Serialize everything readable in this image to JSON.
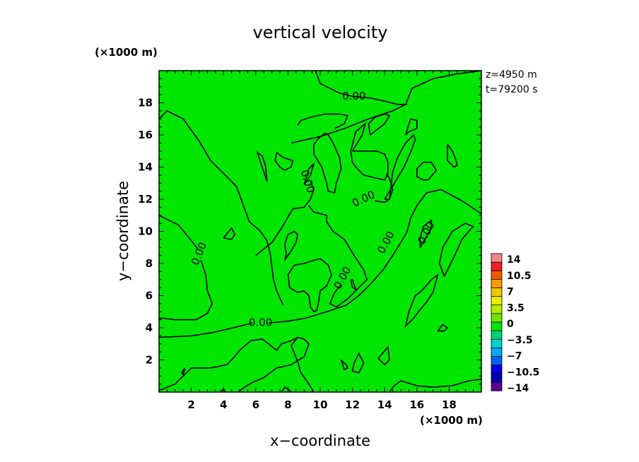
{
  "chart_data": {
    "type": "heatmap",
    "title": "vertical velocity",
    "xlabel": "x−coordinate",
    "ylabel": "y−coordinate",
    "x_unit": "(×1000 m)",
    "y_unit": "(×1000 m)",
    "xlim": [
      0,
      20
    ],
    "ylim": [
      0,
      20
    ],
    "xticks": [
      "2",
      "4",
      "6",
      "8",
      "10",
      "12",
      "14",
      "16",
      "18"
    ],
    "yticks": [
      "2",
      "4",
      "6",
      "8",
      "10",
      "12",
      "14",
      "16",
      "18"
    ],
    "info": [
      "z=4950  m",
      "t=79200  s"
    ],
    "field_value_dominant": 0,
    "contour_level": 0,
    "contour_labels": [
      {
        "text": "0.00",
        "x": 12.1,
        "y": 18.4,
        "angle": 0
      },
      {
        "text": "0.00",
        "x": 6.3,
        "y": 4.3,
        "angle": 0
      },
      {
        "text": "0.00",
        "x": 12.7,
        "y": 12.0,
        "angle": -25
      },
      {
        "text": "0.00",
        "x": 2.5,
        "y": 8.6,
        "angle": -68
      },
      {
        "text": "0.00",
        "x": 9.2,
        "y": 13.1,
        "angle": 72
      },
      {
        "text": "0.00",
        "x": 14.1,
        "y": 9.3,
        "angle": -62
      },
      {
        "text": "0.00",
        "x": 11.4,
        "y": 7.1,
        "angle": -62
      },
      {
        "text": "0.00",
        "x": 16.6,
        "y": 9.9,
        "angle": -62
      }
    ],
    "colorbar": {
      "labels": [
        "14",
        "10.5",
        "7",
        "3.5",
        "0",
        "−3.5",
        "−7",
        "−10.5",
        "−14"
      ],
      "colors": [
        "#ef8888",
        "#ef2020",
        "#ef5a00",
        "#ff9c00",
        "#f0c800",
        "#e6ef00",
        "#b4ef00",
        "#6ee600",
        "#00e600",
        "#00d27a",
        "#00d2d2",
        "#00a8f0",
        "#0064f0",
        "#0000e6",
        "#0000b4",
        "#5a0096"
      ]
    },
    "contours": [
      [
        [
          8.2,
          15.5
        ],
        [
          10.0,
          15.9
        ],
        [
          11.5,
          16.4
        ],
        [
          13.0,
          17.0
        ],
        [
          14.5,
          17.5
        ],
        [
          15.3,
          17.9
        ],
        [
          15.7,
          18.9
        ],
        [
          17.0,
          19.5
        ],
        [
          18.5,
          19.8
        ],
        [
          20,
          20
        ]
      ],
      [
        [
          9.7,
          20
        ],
        [
          10.0,
          19.2
        ],
        [
          11.2,
          18.6
        ],
        [
          12.0,
          18.4
        ],
        [
          13.1,
          18.3
        ],
        [
          14.0,
          18.1
        ],
        [
          14.8,
          17.9
        ],
        [
          15.4,
          17.9
        ]
      ],
      [
        [
          20,
          11.1
        ],
        [
          18.8,
          11.9
        ],
        [
          17.5,
          12.6
        ],
        [
          16.6,
          12.4
        ],
        [
          16.0,
          11.6
        ],
        [
          15.6,
          10.8
        ],
        [
          15.4,
          10.0
        ],
        [
          15.0,
          9.3
        ],
        [
          14.5,
          8.5
        ],
        [
          13.9,
          7.6
        ],
        [
          13.1,
          6.7
        ],
        [
          12.4,
          6.0
        ],
        [
          11.6,
          5.4
        ],
        [
          10.4,
          5.0
        ],
        [
          9.1,
          4.6
        ],
        [
          7.9,
          4.4
        ],
        [
          6.8,
          4.3
        ]
      ],
      [
        [
          5.8,
          4.3
        ],
        [
          4.6,
          4.0
        ],
        [
          3.3,
          3.7
        ],
        [
          2.0,
          3.5
        ],
        [
          0,
          3.4
        ]
      ],
      [
        [
          0,
          11.0
        ],
        [
          1.2,
          10.4
        ],
        [
          2.1,
          9.3
        ],
        [
          2.4,
          8.9
        ]
      ],
      [
        [
          2.6,
          8.2
        ],
        [
          2.9,
          7.3
        ],
        [
          3.0,
          6.3
        ],
        [
          3.3,
          5.5
        ],
        [
          3.0,
          4.9
        ],
        [
          2.3,
          4.5
        ],
        [
          1.0,
          4.5
        ],
        [
          0.2,
          4.6
        ],
        [
          0,
          4.6
        ]
      ],
      [
        [
          0,
          17.0
        ],
        [
          0.5,
          17.5
        ],
        [
          1.5,
          17.0
        ],
        [
          2.5,
          15.6
        ],
        [
          3.2,
          14.4
        ],
        [
          4.2,
          13.4
        ],
        [
          4.8,
          12.8
        ],
        [
          5.2,
          11.7
        ],
        [
          5.6,
          10.6
        ],
        [
          6.3,
          10.0
        ],
        [
          6.7,
          9.4
        ],
        [
          6.9,
          8.6
        ],
        [
          7.0,
          7.8
        ],
        [
          7.1,
          7.0
        ],
        [
          7.3,
          6.3
        ],
        [
          7.7,
          5.4
        ]
      ],
      [
        [
          9.6,
          0
        ],
        [
          9.3,
          0.5
        ],
        [
          8.8,
          1.2
        ],
        [
          8.6,
          1.9
        ],
        [
          8.4,
          2.4
        ],
        [
          8.2,
          2.9
        ],
        [
          8.6,
          3.4
        ]
      ],
      [
        [
          6.0,
          8.5
        ],
        [
          7.0,
          9.3
        ],
        [
          7.6,
          10.2
        ],
        [
          8.3,
          11.4
        ],
        [
          9.0,
          11.5
        ],
        [
          9.4,
          12.0
        ],
        [
          9.6,
          12.6
        ],
        [
          9.4,
          13.1
        ]
      ],
      [
        [
          10.9,
          16.4
        ],
        [
          11.5,
          16.7
        ],
        [
          11.7,
          17.2
        ],
        [
          11.2,
          17.3
        ],
        [
          10.3,
          17.3
        ],
        [
          9.4,
          17.1
        ],
        [
          8.8,
          16.9
        ],
        [
          8.6,
          16.6
        ]
      ],
      [
        [
          9.3,
          11.6
        ],
        [
          9.6,
          11.2
        ],
        [
          10.4,
          11.0
        ],
        [
          10.4,
          10.6
        ],
        [
          10.8,
          10.0
        ],
        [
          11.5,
          9.5
        ],
        [
          12.1,
          8.5
        ],
        [
          12.7,
          7.6
        ],
        [
          12.9,
          7.0
        ],
        [
          12.3,
          6.4
        ],
        [
          11.7,
          5.8
        ],
        [
          11.0,
          5.3
        ],
        [
          10.6,
          5.5
        ],
        [
          10.9,
          6.2
        ],
        [
          11.3,
          6.7
        ]
      ],
      [
        [
          11.0,
          13.0
        ],
        [
          11.3,
          13.9
        ],
        [
          11.2,
          14.6
        ],
        [
          10.8,
          15.5
        ],
        [
          10.5,
          16.0
        ],
        [
          10.3,
          16.1
        ],
        [
          9.9,
          15.8
        ],
        [
          9.6,
          15.4
        ],
        [
          9.6,
          14.8
        ],
        [
          10.1,
          14.0
        ],
        [
          10.4,
          13.0
        ],
        [
          10.5,
          12.5
        ],
        [
          10.9,
          12.4
        ],
        [
          11.0,
          13.0
        ]
      ],
      [
        [
          12.0,
          15.0
        ],
        [
          12.6,
          16.0
        ],
        [
          12.8,
          16.7
        ],
        [
          12.2,
          16.2
        ],
        [
          11.9,
          15.0
        ],
        [
          12.0,
          14.3
        ],
        [
          12.3,
          13.9
        ],
        [
          12.7,
          13.5
        ],
        [
          13.5,
          13.3
        ],
        [
          14.0,
          13.2
        ],
        [
          14.2,
          13.6
        ],
        [
          14.2,
          14.3
        ],
        [
          14.0,
          14.8
        ],
        [
          13.5,
          15.0
        ],
        [
          12.8,
          15.0
        ],
        [
          12.0,
          15.0
        ]
      ],
      [
        [
          13.4,
          11.9
        ],
        [
          14.0,
          11.8
        ],
        [
          14.3,
          12.0
        ],
        [
          14.5,
          12.6
        ],
        [
          14.3,
          13.3
        ],
        [
          14.1,
          13.6
        ]
      ],
      [
        [
          14.0,
          12.0
        ],
        [
          15.2,
          14.0
        ],
        [
          15.6,
          14.9
        ],
        [
          15.9,
          15.7
        ],
        [
          15.8,
          16.0
        ],
        [
          15.3,
          15.5
        ],
        [
          14.8,
          14.6
        ],
        [
          14.5,
          13.7
        ],
        [
          14.4,
          12.8
        ],
        [
          14.3,
          12.0
        ],
        [
          14.0,
          12.0
        ]
      ],
      [
        [
          13.1,
          16.0
        ],
        [
          14.0,
          16.7
        ],
        [
          14.3,
          17.2
        ],
        [
          14.0,
          17.3
        ],
        [
          13.4,
          17.1
        ],
        [
          13.0,
          16.7
        ],
        [
          13.1,
          16.0
        ]
      ],
      [
        [
          15.6,
          17.0
        ],
        [
          16.0,
          16.9
        ],
        [
          16.0,
          16.4
        ],
        [
          15.5,
          16.2
        ],
        [
          15.3,
          16.0
        ],
        [
          15.6,
          17.0
        ]
      ],
      [
        [
          6.7,
          13.1
        ],
        [
          6.3,
          14.3
        ],
        [
          6.1,
          14.9
        ],
        [
          6.4,
          14.7
        ],
        [
          6.6,
          14.1
        ],
        [
          6.7,
          13.1
        ]
      ],
      [
        [
          7.3,
          14.9
        ],
        [
          7.7,
          14.6
        ],
        [
          8.3,
          14.4
        ],
        [
          8.2,
          14.0
        ],
        [
          7.8,
          13.8
        ],
        [
          7.5,
          14.0
        ],
        [
          7.2,
          14.4
        ],
        [
          7.3,
          14.9
        ]
      ],
      [
        [
          9.0,
          12.9
        ],
        [
          9.4,
          13.5
        ],
        [
          9.6,
          14.2
        ],
        [
          9.3,
          13.9
        ],
        [
          9.0,
          12.9
        ]
      ],
      [
        [
          16.7,
          13.2
        ],
        [
          17.2,
          13.8
        ],
        [
          16.9,
          14.3
        ],
        [
          16.4,
          14.3
        ],
        [
          16.0,
          13.9
        ],
        [
          16.0,
          13.4
        ],
        [
          16.4,
          13.2
        ],
        [
          16.7,
          13.2
        ]
      ],
      [
        [
          16.2,
          9.0
        ],
        [
          16.9,
          10.2
        ],
        [
          16.9,
          10.7
        ],
        [
          16.4,
          10.3
        ],
        [
          16.2,
          9.6
        ],
        [
          16.2,
          9.0
        ]
      ],
      [
        [
          17.7,
          7.2
        ],
        [
          18.3,
          8.4
        ],
        [
          18.8,
          9.5
        ],
        [
          19.3,
          10.1
        ],
        [
          19.5,
          10.3
        ],
        [
          19.0,
          10.5
        ],
        [
          18.2,
          10.0
        ],
        [
          17.6,
          9.0
        ],
        [
          17.4,
          8.0
        ],
        [
          17.7,
          7.2
        ]
      ],
      [
        [
          15.8,
          4.6
        ],
        [
          15.5,
          4.3
        ],
        [
          15.3,
          4.1
        ],
        [
          15.5,
          5.0
        ],
        [
          15.9,
          6.0
        ],
        [
          16.3,
          6.3
        ],
        [
          16.9,
          7.0
        ],
        [
          17.3,
          7.3
        ],
        [
          17.0,
          6.2
        ],
        [
          16.6,
          5.6
        ],
        [
          16.1,
          5.0
        ],
        [
          15.8,
          4.6
        ]
      ],
      [
        [
          17.3,
          3.8
        ],
        [
          17.7,
          3.8
        ],
        [
          17.9,
          4.0
        ],
        [
          17.6,
          4.2
        ],
        [
          17.3,
          3.8
        ]
      ],
      [
        [
          4.0,
          9.6
        ],
        [
          4.5,
          10.2
        ],
        [
          4.7,
          9.8
        ],
        [
          4.5,
          9.5
        ],
        [
          4.0,
          9.6
        ]
      ],
      [
        [
          7.8,
          8.2
        ],
        [
          8.2,
          8.8
        ],
        [
          8.5,
          9.3
        ],
        [
          8.6,
          9.8
        ],
        [
          8.4,
          10.0
        ],
        [
          8.0,
          9.8
        ],
        [
          7.8,
          9.2
        ],
        [
          7.9,
          8.6
        ],
        [
          7.8,
          8.2
        ]
      ],
      [
        [
          9.6,
          8.2
        ],
        [
          10.0,
          8.3
        ],
        [
          10.5,
          7.9
        ],
        [
          10.7,
          7.3
        ],
        [
          10.4,
          6.6
        ],
        [
          10.0,
          6.3
        ],
        [
          9.9,
          5.6
        ],
        [
          9.8,
          5.1
        ],
        [
          9.6,
          5.0
        ],
        [
          9.4,
          5.3
        ],
        [
          9.3,
          6.0
        ],
        [
          9.0,
          6.3
        ],
        [
          8.6,
          6.2
        ],
        [
          8.1,
          6.5
        ],
        [
          8.0,
          7.3
        ],
        [
          8.4,
          7.9
        ],
        [
          9.0,
          8.0
        ],
        [
          9.6,
          8.2
        ]
      ],
      [
        [
          11.9,
          7.0
        ],
        [
          12.0,
          6.5
        ],
        [
          12.2,
          6.4
        ],
        [
          12.0,
          7.0
        ],
        [
          11.9,
          7.0
        ]
      ],
      [
        [
          12.1,
          1.8
        ],
        [
          12.4,
          2.4
        ],
        [
          12.7,
          1.8
        ],
        [
          12.4,
          1.2
        ],
        [
          12.0,
          1.3
        ],
        [
          12.1,
          1.8
        ]
      ],
      [
        [
          11.3,
          2.0
        ],
        [
          11.6,
          1.7
        ],
        [
          11.7,
          1.5
        ],
        [
          11.5,
          1.4
        ],
        [
          11.3,
          2.0
        ]
      ],
      [
        [
          13.6,
          2.1
        ],
        [
          14.2,
          2.8
        ],
        [
          14.3,
          2.0
        ],
        [
          14.0,
          1.7
        ],
        [
          13.6,
          2.1
        ]
      ],
      [
        [
          1.4,
          1.2
        ],
        [
          1.6,
          1.5
        ],
        [
          1.5,
          1.1
        ],
        [
          1.4,
          1.2
        ]
      ],
      [
        [
          0,
          0.1
        ],
        [
          1.0,
          0.5
        ],
        [
          2.0,
          1.5
        ],
        [
          3.2,
          1.5
        ],
        [
          4.2,
          1.7
        ],
        [
          4.6,
          2.1
        ],
        [
          5.0,
          2.6
        ],
        [
          5.7,
          3.2
        ],
        [
          6.4,
          3.3
        ],
        [
          6.8,
          3.0
        ],
        [
          7.3,
          2.6
        ],
        [
          7.6,
          3.0
        ],
        [
          8.2,
          3.2
        ],
        [
          8.6,
          3.4
        ],
        [
          9.0,
          3.3
        ],
        [
          9.3,
          3.0
        ],
        [
          9.0,
          2.2
        ],
        [
          8.2,
          1.7
        ],
        [
          7.3,
          1.5
        ],
        [
          6.5,
          0.9
        ],
        [
          5.8,
          0.6
        ],
        [
          5.3,
          0.3
        ],
        [
          4.9,
          0
        ]
      ],
      [
        [
          14.3,
          0
        ],
        [
          14.6,
          0.4
        ],
        [
          15.0,
          0.7
        ],
        [
          16.0,
          0.4
        ],
        [
          17.0,
          0.3
        ],
        [
          18.2,
          0.4
        ],
        [
          19.2,
          0.7
        ],
        [
          20,
          0.8
        ]
      ],
      [
        [
          7.6,
          0
        ],
        [
          7.8,
          0.3
        ],
        [
          8.0,
          0.2
        ],
        [
          8.2,
          0
        ]
      ],
      [
        [
          3.8,
          0
        ],
        [
          4.0,
          0.2
        ],
        [
          4.1,
          0
        ]
      ],
      [
        [
          17.9,
          15.4
        ],
        [
          18.2,
          15.0
        ],
        [
          18.4,
          14.5
        ],
        [
          18.5,
          14.1
        ],
        [
          18.3,
          14.0
        ],
        [
          17.9,
          14.4
        ],
        [
          17.9,
          15.4
        ]
      ]
    ]
  }
}
